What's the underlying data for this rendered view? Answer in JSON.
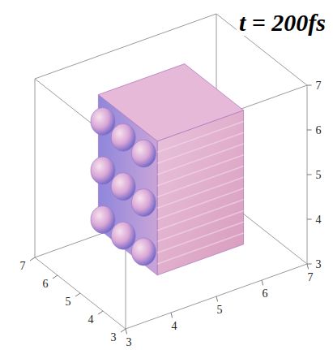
{
  "chart_data": {
    "type": "isosurface",
    "title": "t = 200fs",
    "xlim": [
      3,
      7
    ],
    "xticks": [
      3,
      4,
      5,
      6,
      7
    ],
    "ylim": [
      3,
      7
    ],
    "yticks": [
      3,
      4,
      5,
      6,
      7
    ],
    "zlim": [
      3,
      7
    ],
    "zticks": [
      3,
      4,
      5,
      6,
      7
    ],
    "color": "#d9a6d6",
    "block": {
      "x": [
        3.6,
        6.2
      ],
      "y": [
        4.0,
        5.9
      ],
      "z": [
        3.6,
        6.6
      ]
    },
    "lobes": [
      {
        "x": 4.0,
        "y": 3.9,
        "z": 6.2
      },
      {
        "x": 4.9,
        "y": 3.9,
        "z": 6.2
      },
      {
        "x": 5.8,
        "y": 3.9,
        "z": 6.2
      },
      {
        "x": 4.0,
        "y": 3.9,
        "z": 5.1
      },
      {
        "x": 4.9,
        "y": 3.9,
        "z": 5.1
      },
      {
        "x": 5.8,
        "y": 3.9,
        "z": 5.1
      },
      {
        "x": 4.0,
        "y": 3.9,
        "z": 4.0
      },
      {
        "x": 4.9,
        "y": 3.9,
        "z": 4.0
      },
      {
        "x": 5.8,
        "y": 3.9,
        "z": 4.0
      }
    ]
  }
}
